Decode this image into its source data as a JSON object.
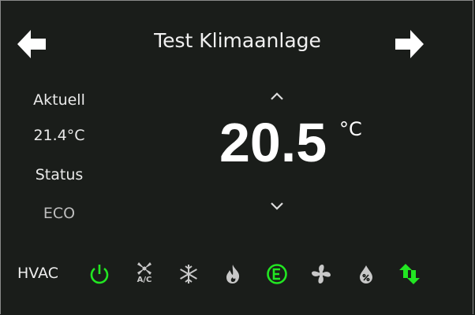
{
  "header": {
    "title": "Test Klimaanlage",
    "prev_icon": "arrow-left-icon",
    "next_icon": "arrow-right-icon"
  },
  "current": {
    "label": "Aktuell",
    "value": "21.4°C"
  },
  "status": {
    "label": "Status",
    "value": "ECO"
  },
  "setpoint": {
    "value": "20.5",
    "unit": "°C",
    "up_icon": "chevron-up-icon",
    "down_icon": "chevron-down-icon"
  },
  "hvac": {
    "label": "HVAC",
    "ac_text": "A/C",
    "modes": [
      {
        "icon": "power-icon",
        "active": true
      },
      {
        "icon": "ac-fan-icon",
        "active": false
      },
      {
        "icon": "snowflake-icon",
        "active": false
      },
      {
        "icon": "flame-icon",
        "active": false
      },
      {
        "icon": "eco-icon",
        "active": true
      },
      {
        "icon": "fan-icon",
        "active": false
      },
      {
        "icon": "dry-icon",
        "active": false
      },
      {
        "icon": "auto-arrows-icon",
        "active": true
      }
    ]
  },
  "colors": {
    "background": "#1a1d1a",
    "active": "#22e622",
    "inactive": "#c8c8c8"
  }
}
